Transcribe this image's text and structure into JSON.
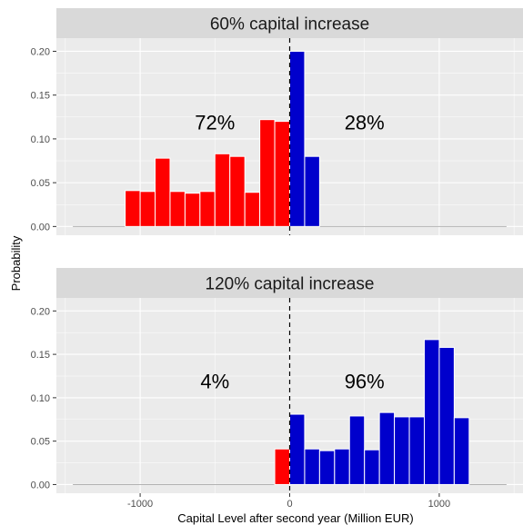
{
  "chart_data": {
    "type": "bar",
    "xlabel": "Capital Level after second year (Million EUR)",
    "ylabel": "Probability",
    "xlim": [
      -1560,
      1560
    ],
    "ylim": [
      -0.01,
      0.215
    ],
    "x_ticks": [
      -1000,
      0,
      1000
    ],
    "x_tick_labels": [
      "-1000",
      "0",
      "1000"
    ],
    "y_ticks": [
      0.0,
      0.05,
      0.1,
      0.15,
      0.2
    ],
    "y_tick_labels": [
      "0.00",
      "0.05",
      "0.10",
      "0.15",
      "0.20"
    ],
    "bin_width": 100,
    "zero_line_style": "dashed",
    "colors": {
      "negative": "#ff0000",
      "positive": "#0000cc",
      "panel_bg": "#ebebeb",
      "strip_bg": "#d9d9d9",
      "grid": "#ffffff",
      "baseline": "#b3b3b3"
    },
    "panels": [
      {
        "title": "60% capital increase",
        "baseline_range": [
          -1450,
          1450
        ],
        "bins": [
          {
            "x": -1100,
            "p": 0.041,
            "side": "negative"
          },
          {
            "x": -1000,
            "p": 0.04,
            "side": "negative"
          },
          {
            "x": -900,
            "p": 0.078,
            "side": "negative"
          },
          {
            "x": -800,
            "p": 0.04,
            "side": "negative"
          },
          {
            "x": -700,
            "p": 0.038,
            "side": "negative"
          },
          {
            "x": -600,
            "p": 0.04,
            "side": "negative"
          },
          {
            "x": -500,
            "p": 0.083,
            "side": "negative"
          },
          {
            "x": -400,
            "p": 0.08,
            "side": "negative"
          },
          {
            "x": -300,
            "p": 0.039,
            "side": "negative"
          },
          {
            "x": -200,
            "p": 0.122,
            "side": "negative"
          },
          {
            "x": -100,
            "p": 0.12,
            "side": "negative"
          },
          {
            "x": 0,
            "p": 0.2,
            "side": "positive"
          },
          {
            "x": 100,
            "p": 0.08,
            "side": "positive"
          }
        ],
        "labels": [
          {
            "text": "72%",
            "x": -500,
            "y": 0.119
          },
          {
            "text": "28%",
            "x": 500,
            "y": 0.119
          }
        ]
      },
      {
        "title": "120% capital increase",
        "baseline_range": [
          -1450,
          1450
        ],
        "bins": [
          {
            "x": -100,
            "p": 0.041,
            "side": "negative"
          },
          {
            "x": 0,
            "p": 0.081,
            "side": "positive"
          },
          {
            "x": 100,
            "p": 0.041,
            "side": "positive"
          },
          {
            "x": 200,
            "p": 0.039,
            "side": "positive"
          },
          {
            "x": 300,
            "p": 0.041,
            "side": "positive"
          },
          {
            "x": 400,
            "p": 0.079,
            "side": "positive"
          },
          {
            "x": 500,
            "p": 0.04,
            "side": "positive"
          },
          {
            "x": 600,
            "p": 0.083,
            "side": "positive"
          },
          {
            "x": 700,
            "p": 0.078,
            "side": "positive"
          },
          {
            "x": 800,
            "p": 0.078,
            "side": "positive"
          },
          {
            "x": 900,
            "p": 0.167,
            "side": "positive"
          },
          {
            "x": 1000,
            "p": 0.158,
            "side": "positive"
          },
          {
            "x": 1100,
            "p": 0.077,
            "side": "positive"
          }
        ],
        "labels": [
          {
            "text": "4%",
            "x": -500,
            "y": 0.119
          },
          {
            "text": "96%",
            "x": 500,
            "y": 0.119
          }
        ]
      }
    ]
  }
}
